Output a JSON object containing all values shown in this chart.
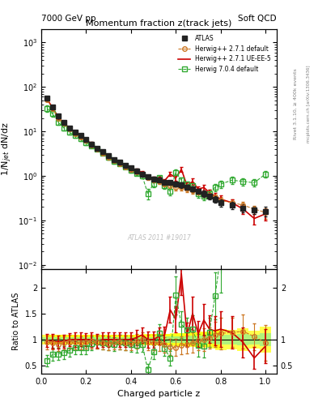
{
  "title_main": "Momentum fraction z(track jets)",
  "top_left_label": "7000 GeV pp",
  "top_right_label": "Soft QCD",
  "right_label_top": "Rivet 3.1.10, ≥ 400k events",
  "right_label_bot": "mcplots.cern.ch [arXiv:1306.3436]",
  "watermark": "ATLAS 2011 #19017",
  "xlabel": "Charged particle z",
  "ylabel_main": "1/N$_{jet}$ dN/dz",
  "ylabel_ratio": "Ratio to ATLAS",
  "atlas_x": [
    0.025,
    0.05,
    0.075,
    0.1,
    0.125,
    0.15,
    0.175,
    0.2,
    0.225,
    0.25,
    0.275,
    0.3,
    0.325,
    0.35,
    0.375,
    0.4,
    0.425,
    0.45,
    0.475,
    0.5,
    0.525,
    0.55,
    0.575,
    0.6,
    0.625,
    0.65,
    0.675,
    0.7,
    0.725,
    0.75,
    0.775,
    0.8,
    0.85,
    0.9,
    0.95,
    1.0
  ],
  "atlas_y": [
    55,
    35,
    22,
    16,
    12,
    9.5,
    8.0,
    6.5,
    5.2,
    4.2,
    3.5,
    2.8,
    2.3,
    2.0,
    1.7,
    1.5,
    1.3,
    1.1,
    0.95,
    0.85,
    0.8,
    0.72,
    0.7,
    0.65,
    0.62,
    0.55,
    0.5,
    0.45,
    0.4,
    0.35,
    0.3,
    0.25,
    0.22,
    0.19,
    0.17,
    0.16
  ],
  "atlas_yerr": [
    5,
    3.5,
    2,
    1.5,
    1.1,
    0.9,
    0.75,
    0.6,
    0.5,
    0.4,
    0.35,
    0.28,
    0.23,
    0.2,
    0.17,
    0.15,
    0.13,
    0.11,
    0.1,
    0.09,
    0.09,
    0.08,
    0.08,
    0.08,
    0.08,
    0.07,
    0.07,
    0.06,
    0.06,
    0.05,
    0.05,
    0.05,
    0.04,
    0.04,
    0.03,
    0.04
  ],
  "hw271_x": [
    0.025,
    0.05,
    0.075,
    0.1,
    0.125,
    0.15,
    0.175,
    0.2,
    0.225,
    0.25,
    0.275,
    0.3,
    0.325,
    0.35,
    0.375,
    0.4,
    0.425,
    0.45,
    0.475,
    0.5,
    0.525,
    0.55,
    0.575,
    0.6,
    0.625,
    0.65,
    0.675,
    0.7,
    0.725,
    0.75,
    0.775,
    0.8,
    0.85,
    0.9,
    0.95,
    1.0
  ],
  "hw271_y": [
    52,
    33,
    20,
    15,
    11.5,
    9.0,
    7.5,
    6.2,
    5.0,
    4.0,
    3.3,
    2.6,
    2.2,
    1.9,
    1.6,
    1.4,
    1.25,
    1.1,
    0.9,
    0.8,
    0.75,
    0.65,
    0.6,
    0.55,
    0.55,
    0.5,
    0.47,
    0.44,
    0.4,
    0.36,
    0.33,
    0.28,
    0.25,
    0.22,
    0.18,
    0.15
  ],
  "hw271_yerr": [
    5,
    3.5,
    2,
    1.5,
    1.1,
    0.9,
    0.75,
    0.6,
    0.5,
    0.4,
    0.35,
    0.28,
    0.23,
    0.2,
    0.17,
    0.15,
    0.13,
    0.11,
    0.1,
    0.09,
    0.09,
    0.08,
    0.08,
    0.08,
    0.08,
    0.07,
    0.07,
    0.06,
    0.06,
    0.05,
    0.05,
    0.05,
    0.04,
    0.04,
    0.03,
    0.04
  ],
  "hw271ue_x": [
    0.025,
    0.05,
    0.075,
    0.1,
    0.125,
    0.15,
    0.175,
    0.2,
    0.225,
    0.25,
    0.275,
    0.3,
    0.325,
    0.35,
    0.375,
    0.4,
    0.425,
    0.45,
    0.475,
    0.5,
    0.525,
    0.55,
    0.575,
    0.6,
    0.625,
    0.65,
    0.675,
    0.7,
    0.725,
    0.75,
    0.775,
    0.8,
    0.85,
    0.9,
    0.95,
    1.0
  ],
  "hw271ue_y": [
    54,
    34,
    21,
    15.5,
    12,
    9.5,
    8.0,
    6.5,
    5.2,
    4.1,
    3.5,
    2.8,
    2.3,
    2.0,
    1.7,
    1.5,
    1.35,
    1.2,
    0.95,
    0.85,
    0.85,
    0.78,
    1.1,
    0.9,
    1.4,
    0.6,
    0.75,
    0.5,
    0.55,
    0.42,
    0.35,
    0.3,
    0.25,
    0.18,
    0.11,
    0.14
  ],
  "hw271ue_yerr": [
    5,
    3.5,
    2,
    1.5,
    1.1,
    0.9,
    0.75,
    0.6,
    0.5,
    0.4,
    0.35,
    0.28,
    0.23,
    0.2,
    0.17,
    0.15,
    0.13,
    0.11,
    0.1,
    0.09,
    0.09,
    0.08,
    0.12,
    0.12,
    0.18,
    0.1,
    0.12,
    0.09,
    0.09,
    0.07,
    0.06,
    0.06,
    0.05,
    0.04,
    0.03,
    0.04
  ],
  "hw704_x": [
    0.025,
    0.05,
    0.075,
    0.1,
    0.125,
    0.15,
    0.175,
    0.2,
    0.225,
    0.25,
    0.275,
    0.3,
    0.325,
    0.35,
    0.375,
    0.4,
    0.425,
    0.45,
    0.475,
    0.5,
    0.525,
    0.55,
    0.575,
    0.6,
    0.625,
    0.65,
    0.675,
    0.7,
    0.725,
    0.75,
    0.775,
    0.8,
    0.85,
    0.9,
    0.95,
    1.0
  ],
  "hw704_y": [
    33,
    25,
    16,
    12,
    9.5,
    8.0,
    6.8,
    5.5,
    4.8,
    4.0,
    3.3,
    2.6,
    2.1,
    1.9,
    1.6,
    1.35,
    1.15,
    1.0,
    0.4,
    0.65,
    0.9,
    0.6,
    0.45,
    1.2,
    0.8,
    0.65,
    0.6,
    0.4,
    0.35,
    0.4,
    0.55,
    0.65,
    0.8,
    0.75,
    0.7,
    1.1
  ],
  "hw704_yerr": [
    5,
    3.5,
    2,
    1.5,
    1.1,
    0.9,
    0.75,
    0.6,
    0.5,
    0.4,
    0.35,
    0.28,
    0.23,
    0.2,
    0.17,
    0.15,
    0.13,
    0.11,
    0.1,
    0.09,
    0.09,
    0.08,
    0.08,
    0.18,
    0.12,
    0.1,
    0.1,
    0.08,
    0.07,
    0.08,
    0.1,
    0.12,
    0.15,
    0.14,
    0.13,
    0.2
  ],
  "color_atlas": "#222222",
  "color_hw271": "#cc7722",
  "color_hw271ue": "#cc0000",
  "color_hw704": "#33aa33",
  "ylim_main": [
    0.008,
    2000
  ],
  "ylim_ratio": [
    0.35,
    2.35
  ],
  "xlim": [
    0.0,
    1.05
  ],
  "legend_labels": [
    "ATLAS",
    "Herwig++ 2.7.1 default",
    "Herwig++ 2.7.1 UE-EE-5",
    "Herwig 7.0.4 default"
  ]
}
